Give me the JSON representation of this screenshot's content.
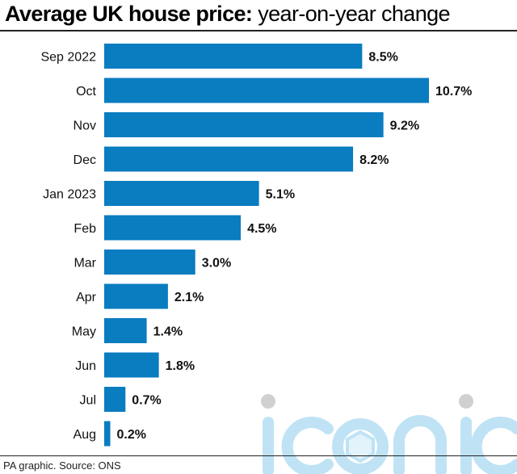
{
  "header": {
    "title_bold": "Average UK house price:",
    "title_light": "year-on-year change"
  },
  "footer": {
    "credit": "PA graphic. Source: ONS"
  },
  "watermark": {
    "text": "iconic"
  },
  "colors": {
    "bar": "#0a7cc0",
    "watermark": "#bfe3f5",
    "watermark_dots": "#d0d0d0"
  },
  "chart_data": {
    "type": "bar",
    "orientation": "horizontal",
    "title": "Average UK house price: year-on-year change",
    "categories": [
      "Sep 2022",
      "Oct",
      "Nov",
      "Dec",
      "Jan 2023",
      "Feb",
      "Mar",
      "Apr",
      "May",
      "Jun",
      "Jul",
      "Aug"
    ],
    "values": [
      8.5,
      10.7,
      9.2,
      8.2,
      5.1,
      4.5,
      3.0,
      2.1,
      1.4,
      1.8,
      0.7,
      0.2
    ],
    "value_labels": [
      "8.5%",
      "10.7%",
      "9.2%",
      "8.2%",
      "5.1%",
      "4.5%",
      "3.0%",
      "2.1%",
      "1.4%",
      "1.8%",
      "0.7%",
      "0.2%"
    ],
    "unit": "%",
    "xlim": [
      0,
      10.7
    ],
    "grid": false,
    "legend": "none"
  }
}
